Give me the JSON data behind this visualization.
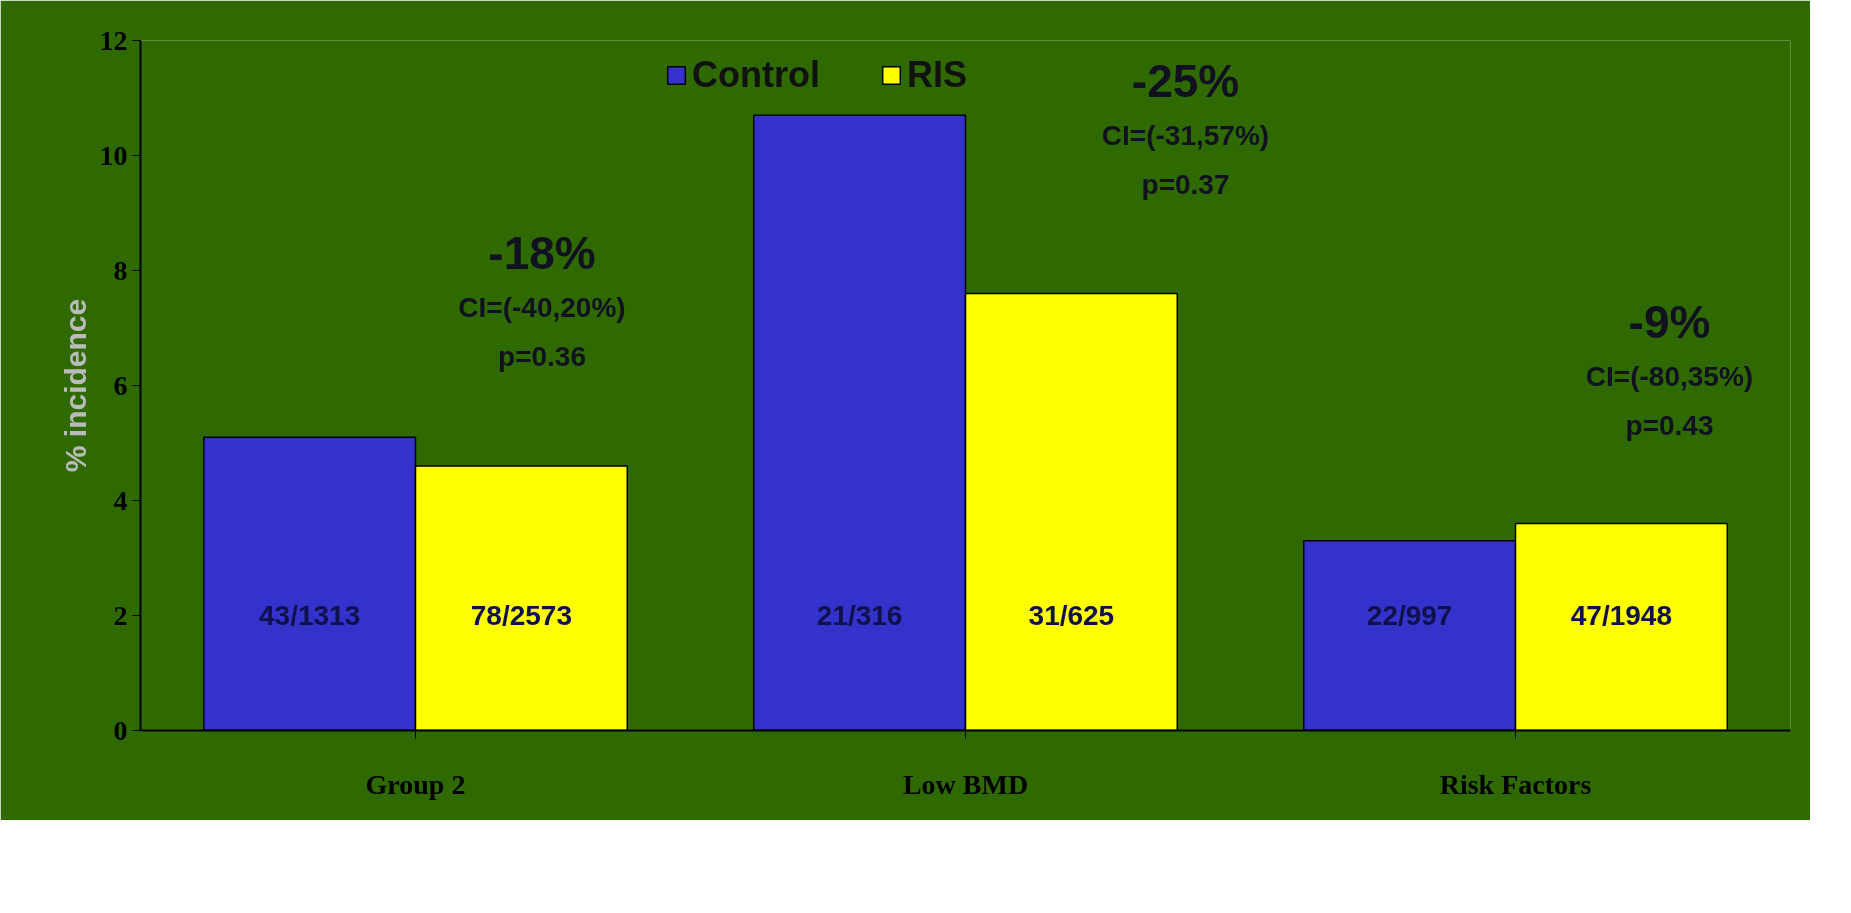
{
  "chart_data": {
    "type": "bar",
    "ylabel": "% incidence",
    "categories": [
      "Group 2",
      "Low BMD",
      "Risk Factors"
    ],
    "series": [
      {
        "name": "Control",
        "color": "#3333cc",
        "values": [
          5.1,
          10.7,
          3.3
        ],
        "value_labels": [
          "43/1313",
          "21/316",
          "22/997"
        ]
      },
      {
        "name": "RIS",
        "color": "#ffff00",
        "values": [
          4.6,
          7.6,
          3.6
        ],
        "value_labels": [
          "78/2573",
          "31/625",
          "47/1948"
        ]
      }
    ],
    "ylim": [
      0,
      12
    ],
    "yticks": [
      0,
      2,
      4,
      6,
      8,
      10,
      12
    ],
    "grid": false,
    "legend": "top",
    "annotations": [
      "-18%",
      "CI=(-40,20%)",
      "p=0.36",
      "-25%",
      "CI=(-31,57%)",
      "p=0.37",
      "-9%",
      "CI=(-80,35%)",
      "p=0.43"
    ]
  }
}
